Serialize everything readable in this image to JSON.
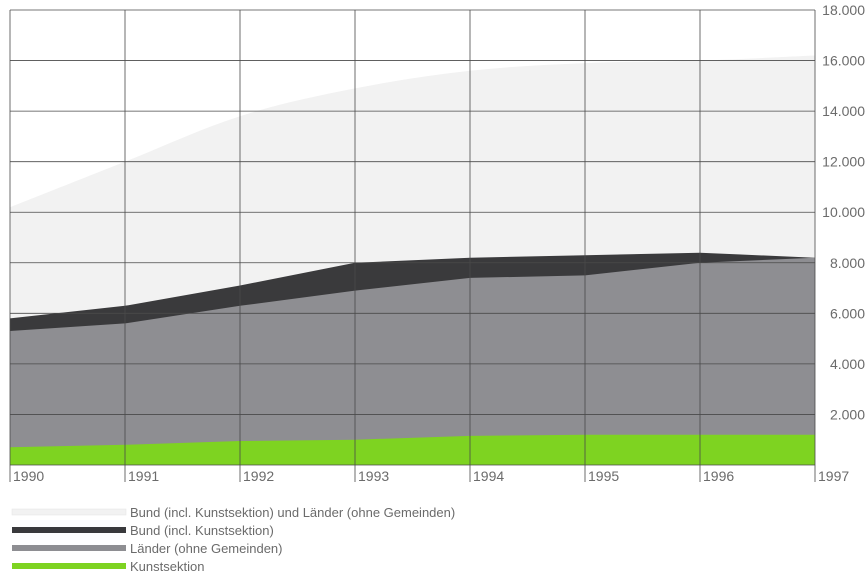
{
  "chart_data": {
    "type": "area",
    "x": [
      1990,
      1991,
      1992,
      1993,
      1994,
      1995,
      1996,
      1997
    ],
    "x_tick_labels": [
      "1990",
      "1991",
      "1992",
      "1993",
      "1994",
      "1995",
      "1996",
      "1997"
    ],
    "y_tick_labels": [
      "2.000",
      "4.000",
      "6.000",
      "8.000",
      "10.000",
      "12.000",
      "14.000",
      "16.000",
      "18.000"
    ],
    "y_ticks": [
      2000,
      4000,
      6000,
      8000,
      10000,
      12000,
      14000,
      16000,
      18000
    ],
    "ylim": [
      0,
      18000
    ],
    "grid": true,
    "legend_position": "bottom-left",
    "series": [
      {
        "name": "Bund (incl. Kunstsektion) und Länder (ohne Gemeinden)",
        "values": [
          10200,
          12000,
          13800,
          14900,
          15600,
          15900,
          16000,
          16200
        ],
        "color": "#f2f2f2"
      },
      {
        "name": "Bund (incl. Kunstsektion)",
        "values": [
          5800,
          6300,
          7100,
          8000,
          8200,
          8300,
          8400,
          8200
        ],
        "color": "#3a3a3c"
      },
      {
        "name": "Länder (ohne Gemeinden)",
        "values": [
          5300,
          5600,
          6300,
          6900,
          7400,
          7500,
          8000,
          8200
        ],
        "color": "#8e8e92"
      },
      {
        "name": "Kunstsektion",
        "values": [
          700,
          800,
          950,
          1000,
          1150,
          1200,
          1200,
          1200
        ],
        "color": "#7ed321"
      }
    ]
  }
}
